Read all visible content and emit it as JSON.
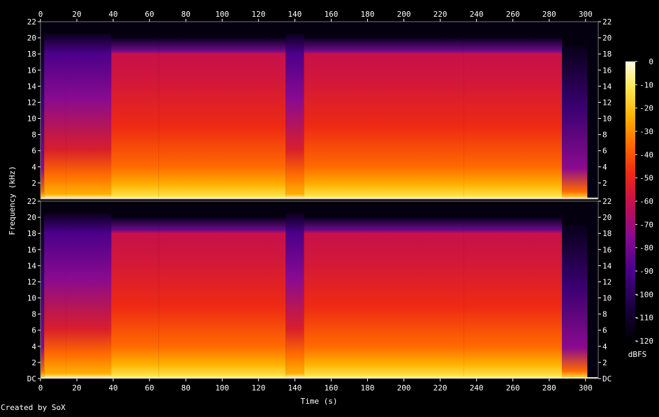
{
  "chart_data": {
    "type": "heatmap",
    "xlabel": "Time (s)",
    "ylabel": "Frequency (kHz)",
    "x_ticks": [
      "0",
      "20",
      "40",
      "60",
      "80",
      "100",
      "120",
      "140",
      "160",
      "180",
      "200",
      "220",
      "240",
      "260",
      "280",
      "300"
    ],
    "x_tick_values": [
      0,
      20,
      40,
      60,
      80,
      100,
      120,
      140,
      160,
      180,
      200,
      220,
      240,
      260,
      280,
      300
    ],
    "xlim": [
      0,
      307
    ],
    "y_ticks_top": [
      "2",
      "4",
      "6",
      "8",
      "10",
      "12",
      "14",
      "16",
      "18",
      "20",
      "22"
    ],
    "y_ticks_bottom": [
      "DC",
      "2",
      "4",
      "6",
      "8",
      "10",
      "12",
      "14",
      "16",
      "18",
      "20",
      "22"
    ],
    "y_tick_values": [
      0,
      2,
      4,
      6,
      8,
      10,
      12,
      14,
      16,
      18,
      20,
      22
    ],
    "ylim": [
      0,
      22
    ],
    "channels": 2,
    "colorbar": {
      "label": "dBFS",
      "ticks": [
        "0",
        "-10",
        "-20",
        "-30",
        "-40",
        "-50",
        "-60",
        "-70",
        "-80",
        "-90",
        "-100",
        "-110",
        "-120"
      ],
      "tick_values": [
        0,
        -10,
        -20,
        -30,
        -40,
        -50,
        -60,
        -70,
        -80,
        -90,
        -100,
        -110,
        -120
      ],
      "range": [
        -120,
        0
      ],
      "colors": [
        "#000000",
        "#1a0040",
        "#4b008a",
        "#8a0b8f",
        "#c8104a",
        "#ee2a12",
        "#ff6a00",
        "#ffb000",
        "#ffe64a",
        "#fffbe0"
      ]
    },
    "segments": [
      {
        "t0": 0,
        "t1": 2,
        "level": "low"
      },
      {
        "t0": 2,
        "t1": 14,
        "level": "mid"
      },
      {
        "t0": 14,
        "t1": 39,
        "level": "mid"
      },
      {
        "t0": 39,
        "t1": 65,
        "level": "high"
      },
      {
        "t0": 65,
        "t1": 135,
        "level": "high"
      },
      {
        "t0": 135,
        "t1": 145,
        "level": "mid"
      },
      {
        "t0": 145,
        "t1": 233,
        "level": "high"
      },
      {
        "t0": 233,
        "t1": 287,
        "level": "high"
      },
      {
        "t0": 287,
        "t1": 301,
        "level": "low"
      },
      {
        "t0": 301,
        "t1": 307,
        "level": "none"
      }
    ]
  },
  "footer": {
    "credit": "Created by SoX"
  }
}
